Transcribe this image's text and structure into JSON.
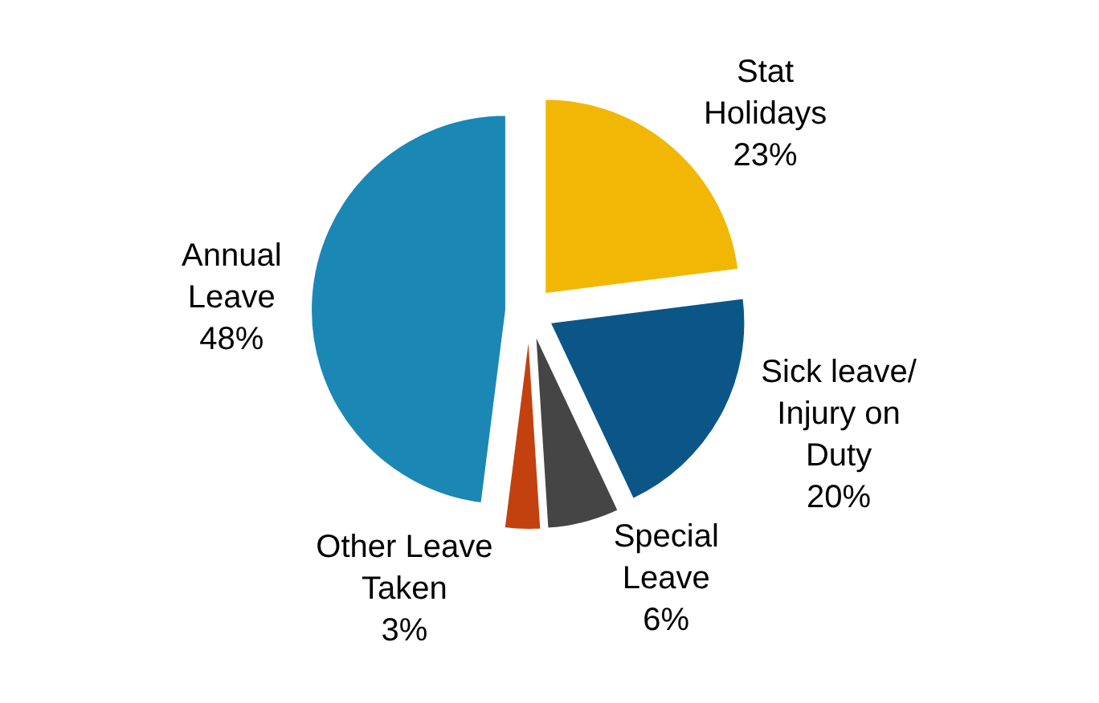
{
  "chart_data": {
    "type": "pie",
    "categories": [
      "Stat\nHolidays",
      "Sick leave/\nInjury on\nDuty",
      "Special\nLeave",
      "Other Leave\nTaken",
      "Annual\nLeave"
    ],
    "values": [
      23,
      20,
      6,
      3,
      48
    ],
    "value_labels": [
      "23%",
      "20%",
      "6%",
      "3%",
      "48%"
    ],
    "colors": [
      "#f2b705",
      "#0b5687",
      "#454545",
      "#c2410e",
      "#1b87b5"
    ],
    "legend": false
  }
}
